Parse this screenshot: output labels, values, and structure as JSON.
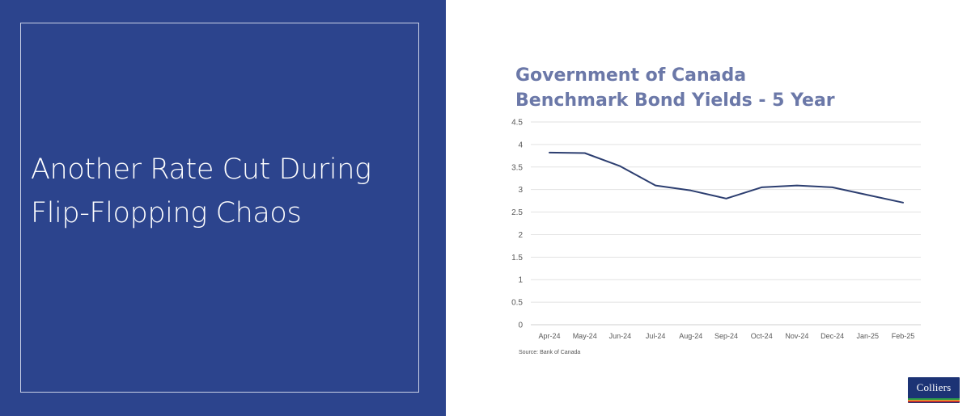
{
  "headline": {
    "line1": "Another Rate Cut During",
    "line2": "Flip-Flopping Chaos"
  },
  "chart_data": {
    "type": "line",
    "title": "Government of Canada Benchmark Bond Yields - 5 Year",
    "title_lines": [
      "Government of Canada",
      "Benchmark Bond Yields - 5 Year"
    ],
    "categories": [
      "Apr-24",
      "May-24",
      "Jun-24",
      "Jul-24",
      "Aug-24",
      "Sep-24",
      "Oct-24",
      "Nov-24",
      "Dec-24",
      "Jan-25",
      "Feb-25"
    ],
    "series": [
      {
        "values": [
          3.82,
          3.81,
          3.52,
          3.09,
          2.98,
          2.8,
          3.05,
          3.09,
          3.05,
          2.88,
          2.71
        ],
        "color": "#2c3e70"
      }
    ],
    "ylim": [
      0,
      4.5
    ],
    "yticks": [
      "0",
      "0.5",
      "1",
      "1.5",
      "2",
      "2.5",
      "3",
      "3.5",
      "4",
      "4.5"
    ],
    "xlabel": "",
    "ylabel": "",
    "grid": true,
    "source": "Source: Bank of Canada"
  },
  "logo": {
    "text": "Colliers",
    "colors": [
      "#1c3375",
      "#2b9a4a",
      "#e5b52b",
      "#c8312e"
    ]
  },
  "colors": {
    "panel": "#2c448d",
    "title": "#6b78a8",
    "grid": "#e2e2e2"
  }
}
